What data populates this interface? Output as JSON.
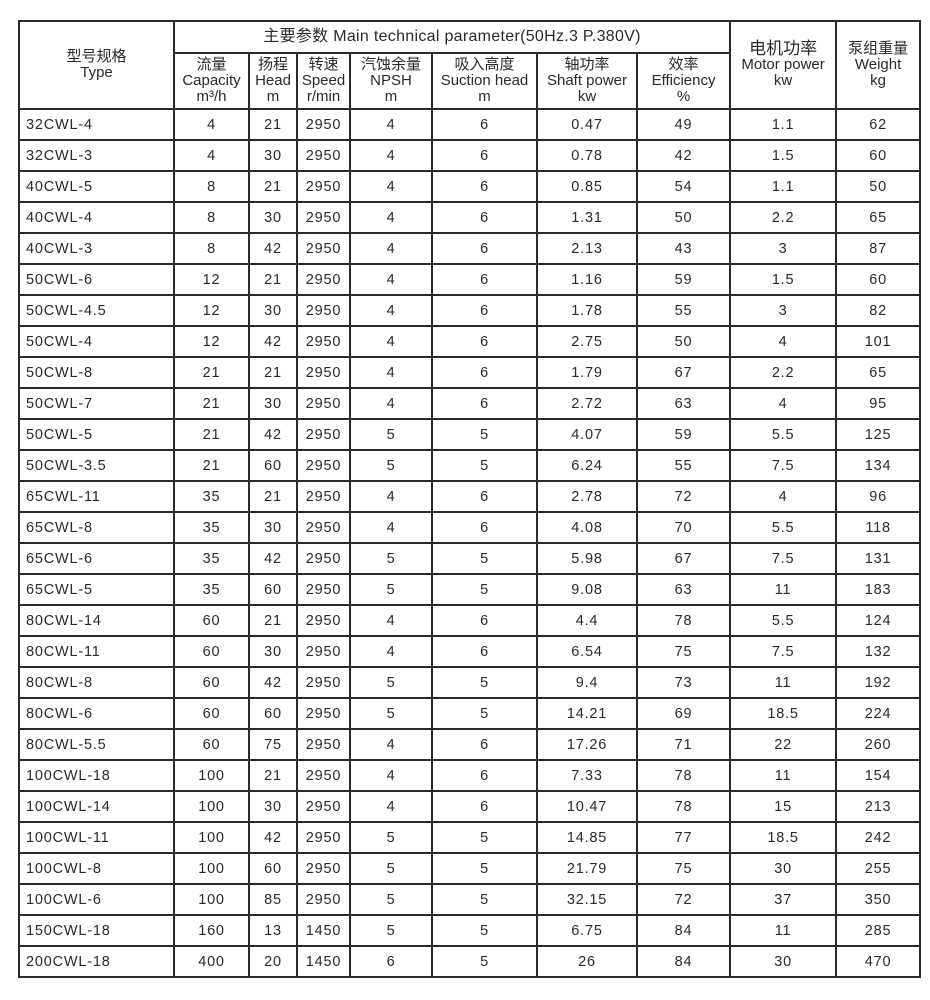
{
  "header": {
    "type_cn": "型号规格",
    "type_en": "Type",
    "main_title": "主要参数 Main technical parameter(50Hz.3 P.380V)",
    "columns": [
      {
        "cn": "流量",
        "en": "Capacity",
        "unit": "m³/h"
      },
      {
        "cn": "扬程",
        "en": "Head",
        "unit": "m"
      },
      {
        "cn": "转速",
        "en": "Speed",
        "unit": "r/min"
      },
      {
        "cn": "汽蚀余量",
        "en": "NPSH",
        "unit": "m"
      },
      {
        "cn": "吸入高度",
        "en": "Suction head",
        "unit": "m"
      },
      {
        "cn": "轴功率",
        "en": "Shaft power",
        "unit": "kw"
      },
      {
        "cn": "效率",
        "en": "Efficiency",
        "unit": "%"
      }
    ],
    "motor_cn": "电机功率",
    "motor_en": "Motor power",
    "motor_unit": "kw",
    "weight_cn": "泵组重量",
    "weight_en": "Weight",
    "weight_unit": "kg"
  },
  "rows": [
    [
      "32CWL-4",
      "4",
      "21",
      "2950",
      "4",
      "6",
      "0.47",
      "49",
      "1.1",
      "62"
    ],
    [
      "32CWL-3",
      "4",
      "30",
      "2950",
      "4",
      "6",
      "0.78",
      "42",
      "1.5",
      "60"
    ],
    [
      "40CWL-5",
      "8",
      "21",
      "2950",
      "4",
      "6",
      "0.85",
      "54",
      "1.1",
      "50"
    ],
    [
      "40CWL-4",
      "8",
      "30",
      "2950",
      "4",
      "6",
      "1.31",
      "50",
      "2.2",
      "65"
    ],
    [
      "40CWL-3",
      "8",
      "42",
      "2950",
      "4",
      "6",
      "2.13",
      "43",
      "3",
      "87"
    ],
    [
      "50CWL-6",
      "12",
      "21",
      "2950",
      "4",
      "6",
      "1.16",
      "59",
      "1.5",
      "60"
    ],
    [
      "50CWL-4.5",
      "12",
      "30",
      "2950",
      "4",
      "6",
      "1.78",
      "55",
      "3",
      "82"
    ],
    [
      "50CWL-4",
      "12",
      "42",
      "2950",
      "4",
      "6",
      "2.75",
      "50",
      "4",
      "101"
    ],
    [
      "50CWL-8",
      "21",
      "21",
      "2950",
      "4",
      "6",
      "1.79",
      "67",
      "2.2",
      "65"
    ],
    [
      "50CWL-7",
      "21",
      "30",
      "2950",
      "4",
      "6",
      "2.72",
      "63",
      "4",
      "95"
    ],
    [
      "50CWL-5",
      "21",
      "42",
      "2950",
      "5",
      "5",
      "4.07",
      "59",
      "5.5",
      "125"
    ],
    [
      "50CWL-3.5",
      "21",
      "60",
      "2950",
      "5",
      "5",
      "6.24",
      "55",
      "7.5",
      "134"
    ],
    [
      "65CWL-11",
      "35",
      "21",
      "2950",
      "4",
      "6",
      "2.78",
      "72",
      "4",
      "96"
    ],
    [
      "65CWL-8",
      "35",
      "30",
      "2950",
      "4",
      "6",
      "4.08",
      "70",
      "5.5",
      "118"
    ],
    [
      "65CWL-6",
      "35",
      "42",
      "2950",
      "5",
      "5",
      "5.98",
      "67",
      "7.5",
      "131"
    ],
    [
      "65CWL-5",
      "35",
      "60",
      "2950",
      "5",
      "5",
      "9.08",
      "63",
      "11",
      "183"
    ],
    [
      "80CWL-14",
      "60",
      "21",
      "2950",
      "4",
      "6",
      "4.4",
      "78",
      "5.5",
      "124"
    ],
    [
      "80CWL-11",
      "60",
      "30",
      "2950",
      "4",
      "6",
      "6.54",
      "75",
      "7.5",
      "132"
    ],
    [
      "80CWL-8",
      "60",
      "42",
      "2950",
      "5",
      "5",
      "9.4",
      "73",
      "11",
      "192"
    ],
    [
      "80CWL-6",
      "60",
      "60",
      "2950",
      "5",
      "5",
      "14.21",
      "69",
      "18.5",
      "224"
    ],
    [
      "80CWL-5.5",
      "60",
      "75",
      "2950",
      "4",
      "6",
      "17.26",
      "71",
      "22",
      "260"
    ],
    [
      "100CWL-18",
      "100",
      "21",
      "2950",
      "4",
      "6",
      "7.33",
      "78",
      "11",
      "154"
    ],
    [
      "100CWL-14",
      "100",
      "30",
      "2950",
      "4",
      "6",
      "10.47",
      "78",
      "15",
      "213"
    ],
    [
      "100CWL-11",
      "100",
      "42",
      "2950",
      "5",
      "5",
      "14.85",
      "77",
      "18.5",
      "242"
    ],
    [
      "100CWL-8",
      "100",
      "60",
      "2950",
      "5",
      "5",
      "21.79",
      "75",
      "30",
      "255"
    ],
    [
      "100CWL-6",
      "100",
      "85",
      "2950",
      "5",
      "5",
      "32.15",
      "72",
      "37",
      "350"
    ],
    [
      "150CWL-18",
      "160",
      "13",
      "1450",
      "5",
      "5",
      "6.75",
      "84",
      "11",
      "285"
    ],
    [
      "200CWL-18",
      "400",
      "20",
      "1450",
      "6",
      "5",
      "26",
      "84",
      "30",
      "470"
    ]
  ]
}
